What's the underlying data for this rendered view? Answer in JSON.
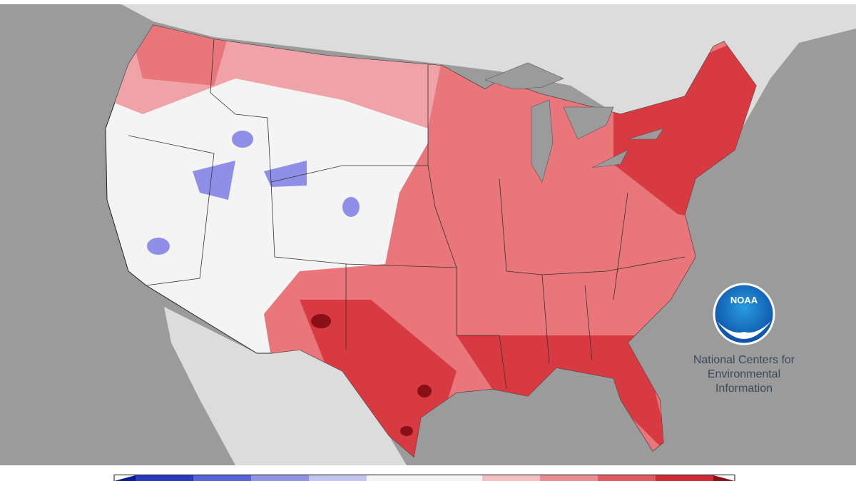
{
  "logo": {
    "text": "NOAA"
  },
  "caption": [
    "National Centers for",
    "Environmental",
    "Information"
  ]
}
